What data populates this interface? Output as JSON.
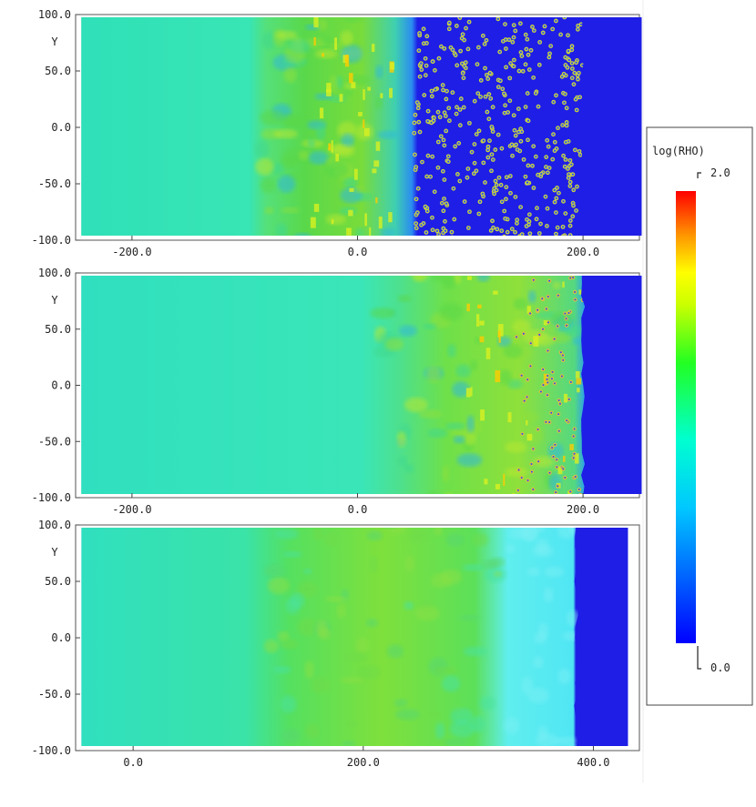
{
  "chart_data": [
    {
      "type": "heatmap",
      "panel": "top",
      "ylabel": "Y",
      "x_ticks": [
        "-200.0",
        "0.0",
        "200.0"
      ],
      "x_tick_values": [
        -200,
        0,
        200
      ],
      "y_ticks": [
        "100.0",
        "50.0",
        "0.0",
        "-50.0",
        "-100.0"
      ],
      "y_tick_values": [
        100,
        50,
        0,
        -50,
        -100
      ],
      "xlim": [
        -250,
        250
      ],
      "ylim": [
        -100,
        100
      ],
      "data_extent_x": [
        -245,
        252
      ],
      "features": {
        "turbulent_zone_x": [
          -90,
          30
        ],
        "transition_zone_x": [
          30,
          55
        ],
        "clumps_zone_x": [
          50,
          200
        ],
        "shock_front_x": 200
      }
    },
    {
      "type": "heatmap",
      "panel": "middle",
      "ylabel": "Y",
      "x_ticks": [
        "-200.0",
        "0.0",
        "200.0"
      ],
      "x_tick_values": [
        -200,
        0,
        200
      ],
      "y_ticks": [
        "100.0",
        "50.0",
        "0.0",
        "-50.0",
        "-100.0"
      ],
      "y_tick_values": [
        100,
        50,
        0,
        -50,
        -100
      ],
      "xlim": [
        -250,
        250
      ],
      "ylim": [
        -100,
        100
      ],
      "data_extent_x": [
        -245,
        252
      ],
      "features": {
        "turbulent_zone_x": [
          20,
          200
        ],
        "shock_front_x": 200
      }
    },
    {
      "type": "heatmap",
      "panel": "bottom",
      "ylabel": "Y",
      "x_ticks": [
        "0.0",
        "200.0",
        "400.0"
      ],
      "x_tick_values": [
        0,
        200,
        400
      ],
      "y_ticks": [
        "100.0",
        "50.0",
        "0.0",
        "-50.0",
        "-100.0"
      ],
      "y_tick_values": [
        100,
        50,
        0,
        -50,
        -100
      ],
      "xlim": [
        -50,
        440
      ],
      "ylim": [
        -100,
        100
      ],
      "data_extent_x": [
        -45,
        430
      ],
      "features": {
        "turbulent_zone_x": [
          120,
          320
        ],
        "shocked_cloud_x": [
          320,
          385
        ],
        "shock_front_x": 385
      }
    }
  ],
  "colorbar": {
    "title": "log(RHO)",
    "max_label": "2.0",
    "min_label": "0.0",
    "range": [
      0.0,
      2.0
    ]
  },
  "colors": {
    "ambient": "#1e1ee6",
    "postshock": "#22e6b4",
    "dense": "#66dd22",
    "peak": "#ee2222"
  }
}
